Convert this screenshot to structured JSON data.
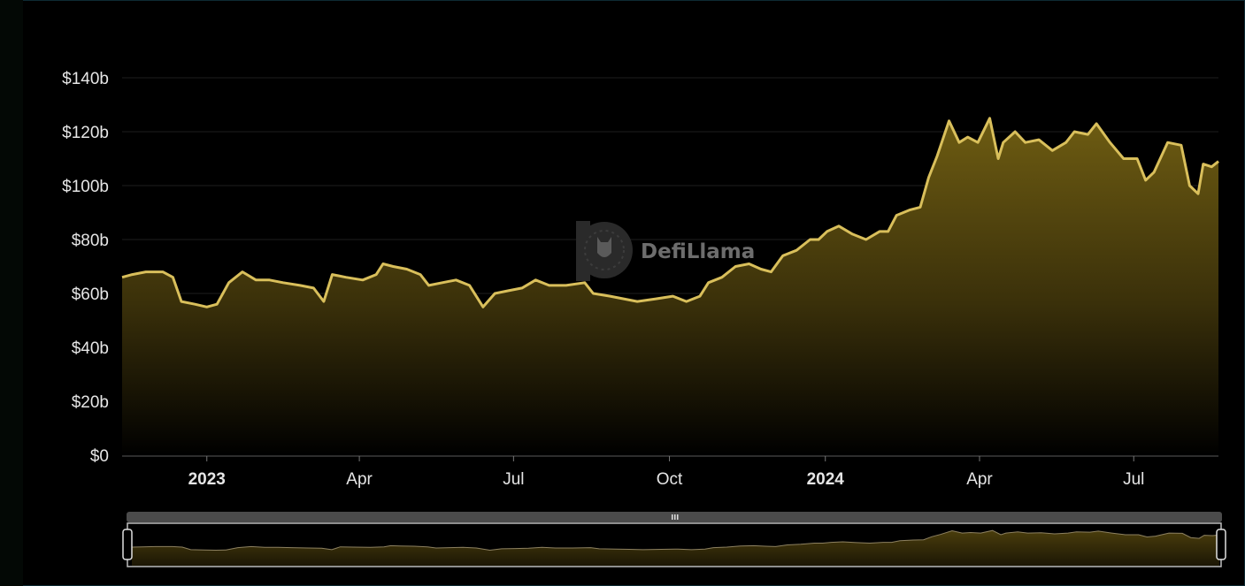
{
  "chart_data": {
    "type": "area",
    "title": "",
    "xlabel": "",
    "ylabel": "",
    "watermark": "DefiLlama",
    "colors": {
      "line": "#d9bf5b",
      "fill_top": "#6e5c12",
      "fill_bottom": "#000000",
      "grid": "#1e1e1e",
      "background": "#000000"
    },
    "grid": true,
    "legend": "none",
    "xlim": [
      "2022-11-12",
      "2024-08-20"
    ],
    "ylim": [
      0,
      140
    ],
    "y_ticks": [
      {
        "value": 0,
        "label": "$0"
      },
      {
        "value": 20,
        "label": "$20b"
      },
      {
        "value": 40,
        "label": "$40b"
      },
      {
        "value": 60,
        "label": "$60b"
      },
      {
        "value": 80,
        "label": "$80b"
      },
      {
        "value": 100,
        "label": "$100b"
      },
      {
        "value": 120,
        "label": "$120b"
      },
      {
        "value": 140,
        "label": "$140b"
      }
    ],
    "x_ticks": [
      {
        "date": "2023-01-01",
        "label": "2023",
        "bold": true
      },
      {
        "date": "2023-04-01",
        "label": "Apr"
      },
      {
        "date": "2023-07-01",
        "label": "Jul"
      },
      {
        "date": "2023-10-01",
        "label": "Oct"
      },
      {
        "date": "2024-01-01",
        "label": "2024",
        "bold": true
      },
      {
        "date": "2024-04-01",
        "label": "Apr"
      },
      {
        "date": "2024-07-01",
        "label": "Jul"
      }
    ],
    "series": [
      {
        "unit": "$b",
        "points": [
          [
            "2022-11-12",
            66
          ],
          [
            "2022-11-18",
            67
          ],
          [
            "2022-11-26",
            68
          ],
          [
            "2022-12-06",
            68
          ],
          [
            "2022-12-12",
            66
          ],
          [
            "2022-12-17",
            57
          ],
          [
            "2022-12-25",
            56
          ],
          [
            "2023-01-01",
            55
          ],
          [
            "2023-01-07",
            56
          ],
          [
            "2023-01-14",
            64
          ],
          [
            "2023-01-22",
            68
          ],
          [
            "2023-01-30",
            65
          ],
          [
            "2023-02-07",
            65
          ],
          [
            "2023-02-15",
            64
          ],
          [
            "2023-02-25",
            63
          ],
          [
            "2023-03-05",
            62
          ],
          [
            "2023-03-11",
            57
          ],
          [
            "2023-03-16",
            67
          ],
          [
            "2023-03-24",
            66
          ],
          [
            "2023-04-03",
            65
          ],
          [
            "2023-04-11",
            67
          ],
          [
            "2023-04-15",
            71
          ],
          [
            "2023-04-21",
            70
          ],
          [
            "2023-04-29",
            69
          ],
          [
            "2023-05-07",
            67
          ],
          [
            "2023-05-12",
            63
          ],
          [
            "2023-05-20",
            64
          ],
          [
            "2023-05-28",
            65
          ],
          [
            "2023-06-05",
            63
          ],
          [
            "2023-06-13",
            55
          ],
          [
            "2023-06-20",
            60
          ],
          [
            "2023-06-28",
            61
          ],
          [
            "2023-07-06",
            62
          ],
          [
            "2023-07-14",
            65
          ],
          [
            "2023-07-22",
            63
          ],
          [
            "2023-08-01",
            63
          ],
          [
            "2023-08-12",
            64
          ],
          [
            "2023-08-17",
            60
          ],
          [
            "2023-08-27",
            59
          ],
          [
            "2023-09-04",
            58
          ],
          [
            "2023-09-12",
            57
          ],
          [
            "2023-09-23",
            58
          ],
          [
            "2023-10-03",
            59
          ],
          [
            "2023-10-11",
            57
          ],
          [
            "2023-10-19",
            59
          ],
          [
            "2023-10-24",
            64
          ],
          [
            "2023-11-01",
            66
          ],
          [
            "2023-11-09",
            70
          ],
          [
            "2023-11-17",
            71
          ],
          [
            "2023-11-24",
            69
          ],
          [
            "2023-11-30",
            68
          ],
          [
            "2023-12-07",
            74
          ],
          [
            "2023-12-15",
            76
          ],
          [
            "2023-12-23",
            80
          ],
          [
            "2023-12-28",
            80
          ],
          [
            "2024-01-02",
            83
          ],
          [
            "2024-01-09",
            85
          ],
          [
            "2024-01-17",
            82
          ],
          [
            "2024-01-25",
            80
          ],
          [
            "2024-02-02",
            83
          ],
          [
            "2024-02-07",
            83
          ],
          [
            "2024-02-12",
            89
          ],
          [
            "2024-02-20",
            91
          ],
          [
            "2024-02-26",
            92
          ],
          [
            "2024-03-02",
            103
          ],
          [
            "2024-03-07",
            111
          ],
          [
            "2024-03-14",
            124
          ],
          [
            "2024-03-20",
            116
          ],
          [
            "2024-03-25",
            118
          ],
          [
            "2024-03-31",
            116
          ],
          [
            "2024-04-07",
            125
          ],
          [
            "2024-04-12",
            110
          ],
          [
            "2024-04-15",
            116
          ],
          [
            "2024-04-22",
            120
          ],
          [
            "2024-04-28",
            116
          ],
          [
            "2024-05-06",
            117
          ],
          [
            "2024-05-14",
            113
          ],
          [
            "2024-05-22",
            116
          ],
          [
            "2024-05-27",
            120
          ],
          [
            "2024-06-04",
            119
          ],
          [
            "2024-06-09",
            123
          ],
          [
            "2024-06-17",
            116
          ],
          [
            "2024-06-25",
            110
          ],
          [
            "2024-07-03",
            110
          ],
          [
            "2024-07-08",
            102
          ],
          [
            "2024-07-13",
            105
          ],
          [
            "2024-07-21",
            116
          ],
          [
            "2024-07-29",
            115
          ],
          [
            "2024-08-03",
            100
          ],
          [
            "2024-08-08",
            97
          ],
          [
            "2024-08-11",
            108
          ],
          [
            "2024-08-16",
            107
          ],
          [
            "2024-08-20",
            109
          ]
        ]
      }
    ],
    "range_selector": {
      "start_fraction": 0,
      "end_fraction": 1
    }
  }
}
